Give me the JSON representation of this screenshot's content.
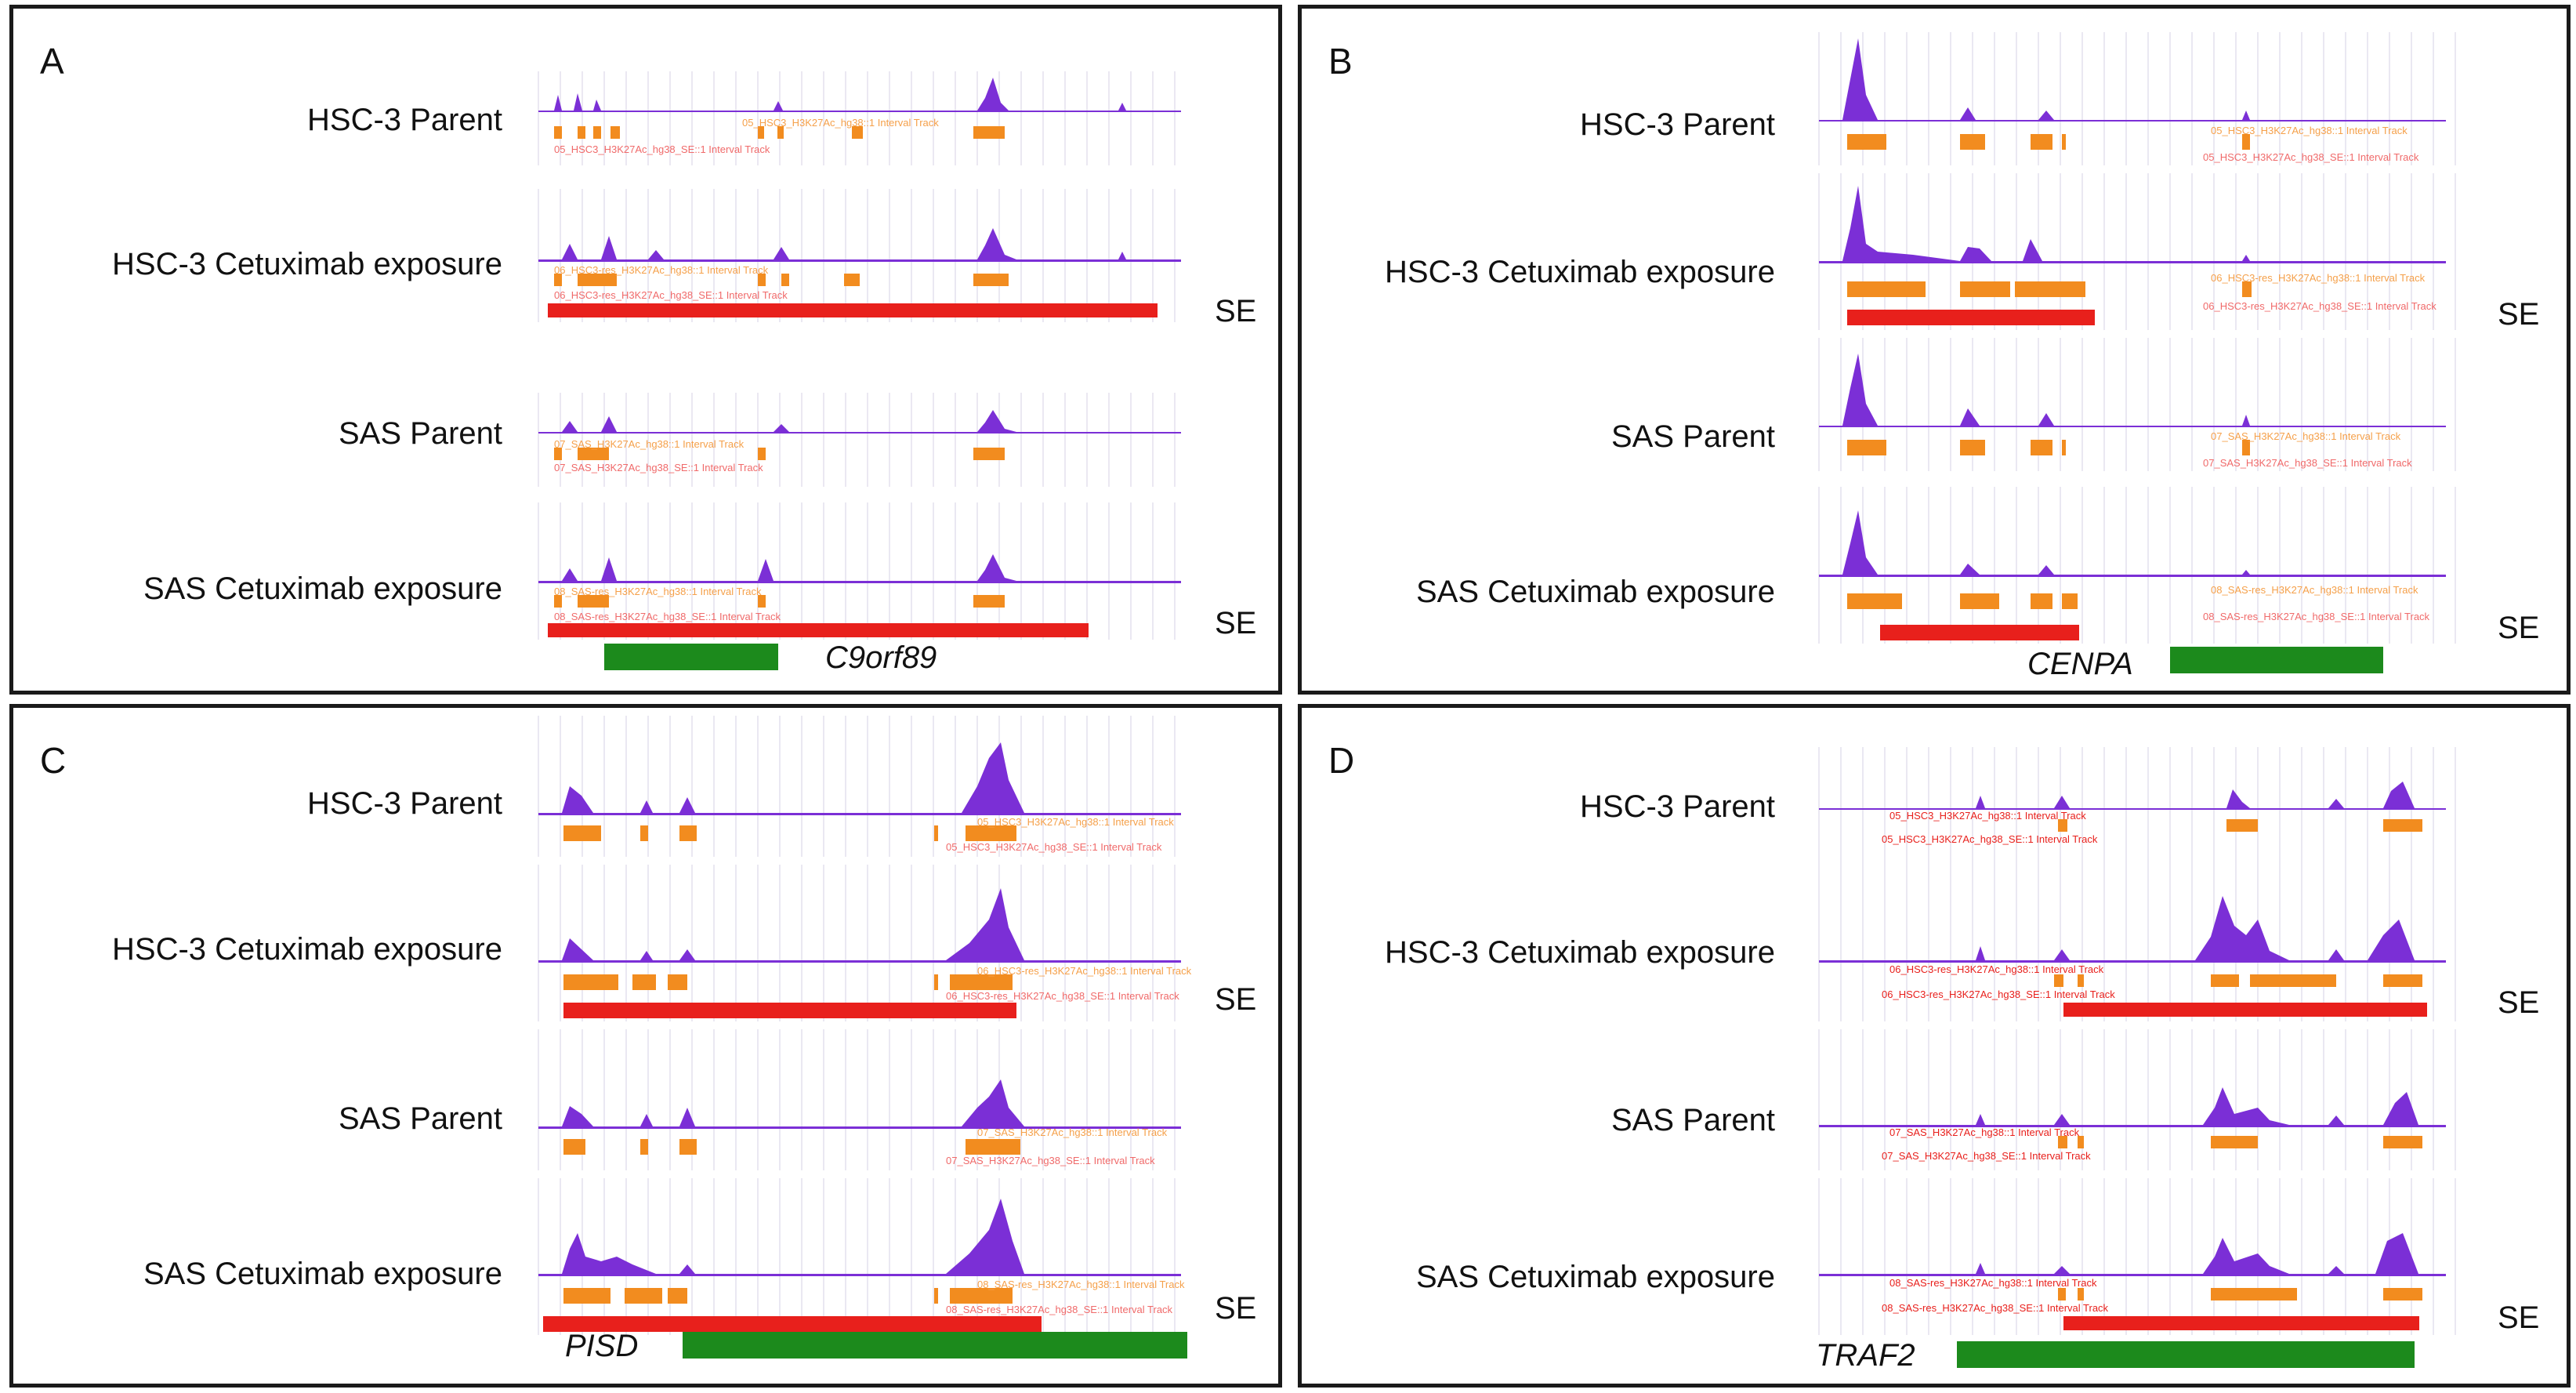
{
  "figure": {
    "se_label": "SE",
    "track_labels": {
      "A": [
        "05_HSC3_H3K27Ac_hg38::1 Interval Track",
        "05_HSC3_H3K27Ac_hg38_SE::1 Interval Track",
        "06_HSC3-res_H3K27Ac_hg38::1 Interval Track",
        "06_HSC3-res_H3K27Ac_hg38_SE::1 Interval Track",
        "07_SAS_H3K27Ac_hg38::1 Interval Track",
        "07_SAS_H3K27Ac_hg38_SE::1 Interval Track",
        "08_SAS-res_H3K27Ac_hg38::1 Interval Track",
        "08_SAS-res_H3K27Ac_hg38_SE::1 Interval Track"
      ]
    },
    "colors": {
      "peak": "#7b2fd6",
      "interval": "#f28c1f",
      "super_enhancer": "#e8201c",
      "gene": "#1c8a1c",
      "label_pink": "#f06a6a",
      "label_orange": "#f5a04a"
    },
    "panels": [
      {
        "letter": "A",
        "gene": "C9orf89",
        "rows": [
          {
            "label": "HSC-3 Parent",
            "top_text": "05_HSC3_H3K27Ac_hg38::1 Interval Track",
            "bottom_text": "05_HSC3_H3K27Ac_hg38_SE::1 Interval Track",
            "se": false
          },
          {
            "label": "HSC-3 Cetuximab exposure",
            "top_text": "06_HSC3-res_H3K27Ac_hg38::1 Interval Track",
            "bottom_text": "06_HSC3-res_H3K27Ac_hg38_SE::1 Interval Track",
            "se": true
          },
          {
            "label": "SAS Parent",
            "top_text": "07_SAS_H3K27Ac_hg38::1 Interval Track",
            "bottom_text": "07_SAS_H3K27Ac_hg38_SE::1 Interval Track",
            "se": false
          },
          {
            "label": "SAS Cetuximab exposure",
            "top_text": "08_SAS-res_H3K27Ac_hg38::1 Interval Track",
            "bottom_text": "08_SAS-res_H3K27Ac_hg38_SE::1 Interval Track",
            "se": true
          }
        ]
      },
      {
        "letter": "B",
        "gene": "CENPA",
        "rows": [
          {
            "label": "HSC-3 Parent",
            "top_text": "05_HSC3_H3K27Ac_hg38::1 Interval Track",
            "bottom_text": "05_HSC3_H3K27Ac_hg38_SE::1 Interval Track",
            "se": false
          },
          {
            "label": "HSC-3 Cetuximab exposure",
            "top_text": "06_HSC3-res_H3K27Ac_hg38::1 Interval Track",
            "bottom_text": "06_HSC3-res_H3K27Ac_hg38_SE::1 Interval Track",
            "se": true
          },
          {
            "label": "SAS Parent",
            "top_text": "07_SAS_H3K27Ac_hg38::1 Interval Track",
            "bottom_text": "07_SAS_H3K27Ac_hg38_SE::1 Interval Track",
            "se": false
          },
          {
            "label": "SAS Cetuximab exposure",
            "top_text": "08_SAS-res_H3K27Ac_hg38::1 Interval Track",
            "bottom_text": "08_SAS-res_H3K27Ac_hg38_SE::1 Interval Track",
            "se": true
          }
        ]
      },
      {
        "letter": "C",
        "gene": "PISD",
        "rows": [
          {
            "label": "HSC-3 Parent",
            "top_text": "05_HSC3_H3K27Ac_hg38::1 Interval Track",
            "bottom_text": "05_HSC3_H3K27Ac_hg38_SE::1 Interval Track",
            "se": false
          },
          {
            "label": "HSC-3 Cetuximab exposure",
            "top_text": "06_HSC3-res_H3K27Ac_hg38::1 Interval Track",
            "bottom_text": "06_HSC3-res_H3K27Ac_hg38_SE::1 Interval Track",
            "se": true
          },
          {
            "label": "SAS Parent",
            "top_text": "07_SAS_H3K27Ac_hg38::1 Interval Track",
            "bottom_text": "07_SAS_H3K27Ac_hg38_SE::1 Interval Track",
            "se": false
          },
          {
            "label": "SAS Cetuximab exposure",
            "top_text": "08_SAS-res_H3K27Ac_hg38::1 Interval Track",
            "bottom_text": "08_SAS-res_H3K27Ac_hg38_SE::1 Interval Track",
            "se": true
          }
        ]
      },
      {
        "letter": "D",
        "gene": "TRAF2",
        "rows": [
          {
            "label": "HSC-3 Parent",
            "top_text": "05_HSC3_H3K27Ac_hg38::1 Interval Track",
            "bottom_text": "05_HSC3_H3K27Ac_hg38_SE::1 Interval Track",
            "se": false
          },
          {
            "label": "HSC-3 Cetuximab exposure",
            "top_text": "06_HSC3-res_H3K27Ac_hg38::1 Interval Track",
            "bottom_text": "06_HSC3-res_H3K27Ac_hg38_SE::1 Interval Track",
            "se": true
          },
          {
            "label": "SAS Parent",
            "top_text": "07_SAS_H3K27Ac_hg38::1 Interval Track",
            "bottom_text": "07_SAS_H3K27Ac_hg38_SE::1 Interval Track",
            "se": false
          },
          {
            "label": "SAS Cetuximab exposure",
            "top_text": "08_SAS-res_H3K27Ac_hg38::1 Interval Track",
            "bottom_text": "08_SAS-res_H3K27Ac_hg38_SE::1 Interval Track",
            "se": true
          }
        ]
      }
    ]
  }
}
